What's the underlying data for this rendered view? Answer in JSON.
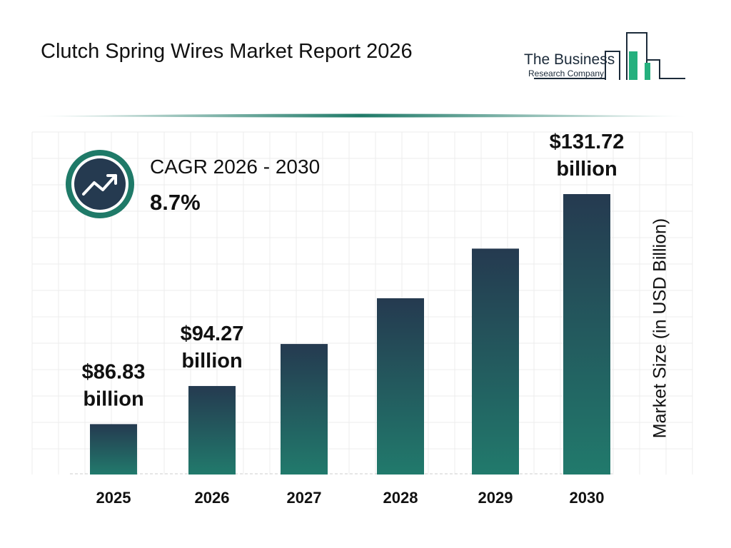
{
  "header": {
    "title": "Clutch Spring Wires Market Report 2026"
  },
  "logo": {
    "line1": "The Business",
    "line2": "Research Company"
  },
  "cagr": {
    "label": "CAGR 2026 - 2030",
    "value": "8.7%",
    "icon": "trending-up-icon"
  },
  "colors": {
    "bar_top": "#253a50",
    "bar_bottom": "#217a6c",
    "accent": "#1f7a68"
  },
  "chart_data": {
    "type": "bar",
    "categories": [
      "2025",
      "2026",
      "2027",
      "2028",
      "2029",
      "2030"
    ],
    "values": [
      86.83,
      94.27,
      102.47,
      111.39,
      121.08,
      131.72
    ],
    "data_labels": [
      [
        "$86.83",
        "billion"
      ],
      [
        "$94.27",
        "billion"
      ],
      null,
      null,
      null,
      [
        "$131.72",
        "billion"
      ]
    ],
    "title": "",
    "xlabel": "",
    "ylabel": "Market Size (in USD Billion)",
    "ylim": [
      77,
      137
    ],
    "grid": true
  }
}
